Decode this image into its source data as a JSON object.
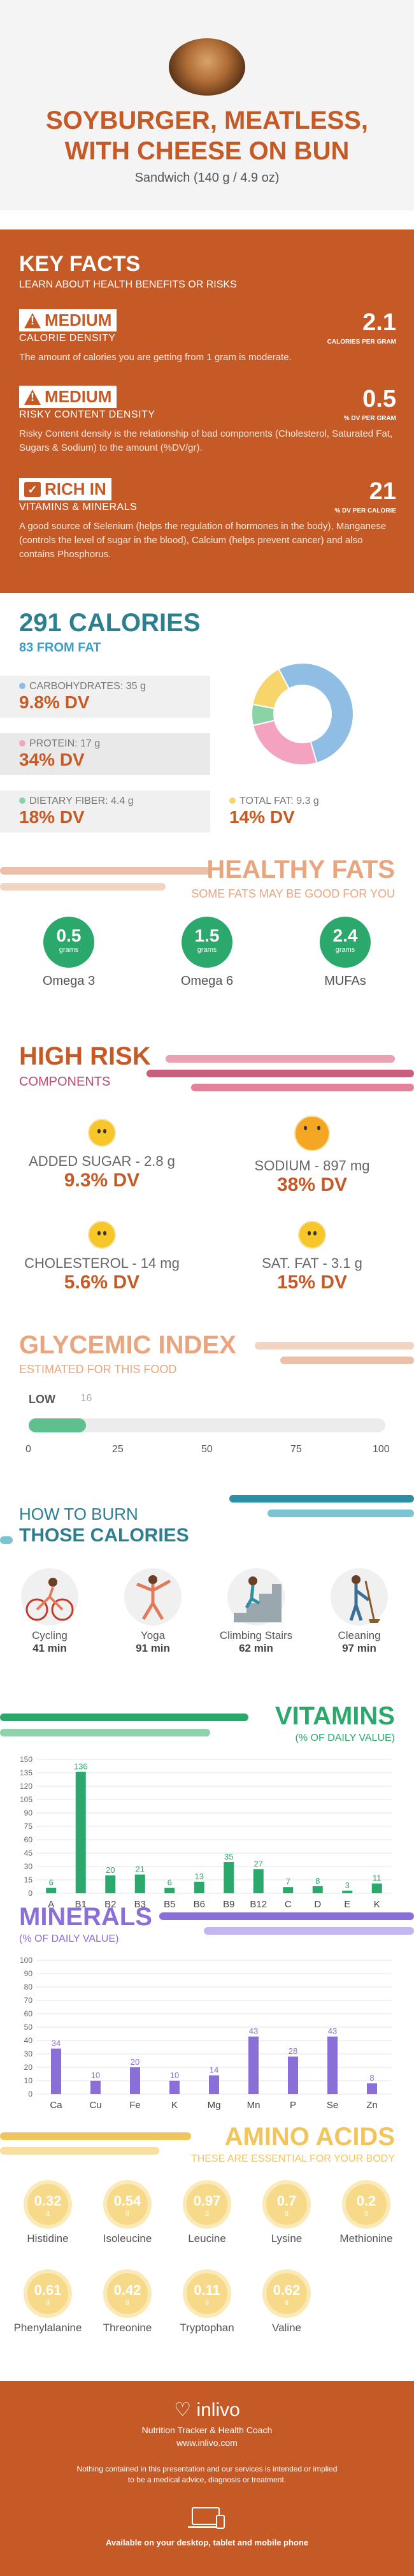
{
  "header": {
    "title_line1": "SOYBURGER, MEATLESS,",
    "title_line2": "WITH CHEESE ON BUN",
    "subtitle": "Sandwich (140 g / 4.9 oz)"
  },
  "key_facts": {
    "title": "KEY FACTS",
    "subtitle": "LEARN ABOUT HEALTH BENEFITS OR RISKS",
    "items": [
      {
        "level": "MEDIUM",
        "label": "CALORIE DENSITY",
        "value": "2.1",
        "unit": "CALORIES PER GRAM",
        "desc": "The amount of calories you are getting from 1 gram is moderate.",
        "icon": "warning-icon"
      },
      {
        "level": "MEDIUM",
        "label": "RISKY CONTENT DENSITY",
        "value": "0.5",
        "unit": "% DV PER GRAM",
        "desc": "Risky Content density is the relationship of bad components (Cholesterol, Saturated Fat, Sugars & Sodium) to the amount (%DV/gr).",
        "icon": "warning-icon"
      },
      {
        "level": "RICH IN",
        "label": "VITAMINS & MINERALS",
        "value": "21",
        "unit": "% DV PER CALORIE",
        "desc": "A good source of Selenium (helps the regulation of hormones in the body), Manganese (controls the level of sugar in the blood), Calcium (helps prevent cancer) and also contains Phosphorus.",
        "icon": "check-icon"
      }
    ]
  },
  "calories": {
    "title": "291 CALORIES",
    "fat": "83 FROM FAT",
    "macros": [
      {
        "name": "CARBOHYDRATES: 35 g",
        "dv": "9.8% DV",
        "color": "#8fbde3"
      },
      {
        "name": "PROTEIN: 17 g",
        "dv": "34% DV",
        "color": "#f3a3c0"
      },
      {
        "name": "DIETARY FIBER: 4.4 g",
        "dv": "18% DV",
        "color": "#8bd3a6"
      },
      {
        "name": "TOTAL FAT: 9.3 g",
        "dv": "14% DV",
        "color": "#f7d56b"
      }
    ],
    "donut": [
      {
        "label": "CARBOHYDRATES",
        "value": 35,
        "color": "#8fbde3"
      },
      {
        "label": "PROTEIN",
        "value": 17,
        "color": "#f3a3c0"
      },
      {
        "label": "DIETARY FIBER",
        "value": 4.4,
        "color": "#8bd3a6"
      },
      {
        "label": "TOTAL FAT",
        "value": 9.3,
        "color": "#f7d56b"
      }
    ]
  },
  "healthy_fats": {
    "title": "HEALTHY FATS",
    "subtitle": "SOME FATS MAY BE GOOD FOR YOU",
    "items": [
      {
        "value": "0.5",
        "unit": "grams",
        "name": "Omega 3"
      },
      {
        "value": "1.5",
        "unit": "grams",
        "name": "Omega 6"
      },
      {
        "value": "2.4",
        "unit": "grams",
        "name": "MUFAs"
      }
    ]
  },
  "high_risk": {
    "title": "HIGH RISK",
    "subtitle": "COMPONENTS",
    "items": [
      {
        "name": "ADDED SUGAR - 2.8 g",
        "dv": "9.3% DV"
      },
      {
        "name": "SODIUM - 897 mg",
        "dv": "38% DV"
      },
      {
        "name": "CHOLESTEROL - 14 mg",
        "dv": "5.6% DV"
      },
      {
        "name": "SAT. FAT - 3.1 g",
        "dv": "15% DV"
      }
    ]
  },
  "glycemic": {
    "title": "GLYCEMIC INDEX",
    "subtitle": "ESTIMATED FOR THIS FOOD",
    "level": "LOW",
    "value": 16,
    "value_label": "16",
    "ticks": [
      "0",
      "25",
      "50",
      "75",
      "100"
    ]
  },
  "burn": {
    "title_line1": "HOW TO BURN",
    "title_line2": "THOSE CALORIES",
    "items": [
      {
        "name": "Cycling",
        "minutes": "41 min",
        "icon": "cycling-icon"
      },
      {
        "name": "Yoga",
        "minutes": "91 min",
        "icon": "yoga-icon"
      },
      {
        "name": "Climbing Stairs",
        "minutes": "62 min",
        "icon": "stairs-icon"
      },
      {
        "name": "Cleaning",
        "minutes": "97 min",
        "icon": "cleaning-icon"
      }
    ]
  },
  "vitamins": {
    "title": "VITAMINS",
    "subtitle": "(% OF DAILY VALUE)"
  },
  "minerals": {
    "title": "MINERALS",
    "subtitle": "(% OF DAILY VALUE)"
  },
  "chart_data": [
    {
      "type": "bar",
      "title": "VITAMINS",
      "subtitle": "(% OF DAILY VALUE)",
      "categories": [
        "A",
        "B1",
        "B2",
        "B3",
        "B5",
        "B6",
        "B9",
        "B12",
        "C",
        "D",
        "E",
        "K"
      ],
      "values": [
        6,
        136,
        20,
        21,
        6,
        13,
        35,
        27,
        7,
        8,
        3,
        11
      ],
      "ylim": [
        0,
        150
      ],
      "yticks": [
        0,
        15,
        30,
        45,
        60,
        75,
        90,
        105,
        120,
        135,
        150
      ],
      "color": "#2ba86b"
    },
    {
      "type": "bar",
      "title": "MINERALS",
      "subtitle": "(% OF DAILY VALUE)",
      "categories": [
        "Ca",
        "Cu",
        "Fe",
        "K",
        "Mg",
        "Mn",
        "P",
        "Se",
        "Zn"
      ],
      "values": [
        34,
        10,
        20,
        10,
        14,
        43,
        28,
        43,
        8
      ],
      "ylim": [
        0,
        100
      ],
      "yticks": [
        0,
        10,
        20,
        30,
        40,
        50,
        60,
        70,
        80,
        90,
        100
      ],
      "color": "#8a6fd8"
    }
  ],
  "amino": {
    "title": "AMINO ACIDS",
    "subtitle": "THESE ARE ESSENTIAL FOR YOUR BODY",
    "items": [
      {
        "name": "Histidine",
        "value": "0.32",
        "unit": "g"
      },
      {
        "name": "Isoleucine",
        "value": "0.54",
        "unit": "g"
      },
      {
        "name": "Leucine",
        "value": "0.97",
        "unit": "g"
      },
      {
        "name": "Lysine",
        "value": "0.7",
        "unit": "g"
      },
      {
        "name": "Methionine",
        "value": "0.2",
        "unit": "g"
      },
      {
        "name": "Phenylalanine",
        "value": "0.61",
        "unit": "g"
      },
      {
        "name": "Threonine",
        "value": "0.42",
        "unit": "g"
      },
      {
        "name": "Tryptophan",
        "value": "0.11",
        "unit": "g"
      },
      {
        "name": "Valine",
        "value": "0.62",
        "unit": "g"
      }
    ]
  },
  "footer": {
    "brand": "inlivo",
    "tagline": "Nutrition Tracker & Health Coach",
    "url": "www.inlivo.com",
    "disclaimer_line1": "Nothing contained in this presentation and our services is intended or implied",
    "disclaimer_line2": "to be a medical advice, diagnosis or treatment.",
    "available": "Available on your desktop, tablet and mobile phone"
  }
}
